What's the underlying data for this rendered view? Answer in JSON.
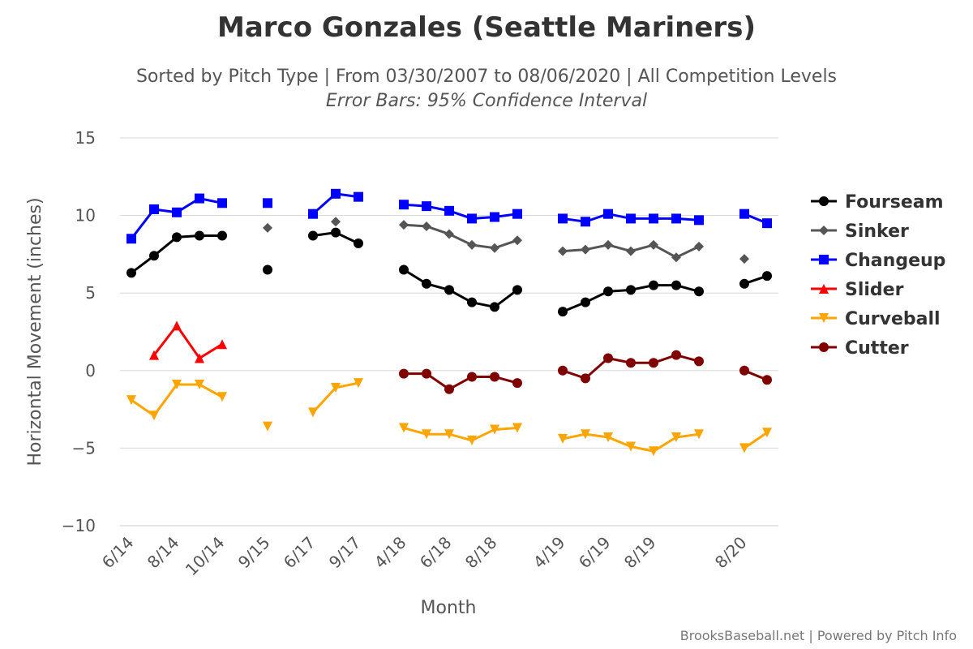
{
  "chart_data": {
    "type": "line",
    "title": "Marco Gonzales (Seattle Mariners)",
    "subtitle": "Sorted by Pitch Type | From 03/30/2007 to 08/06/2020 | All Competition Levels",
    "subtitle2": "Error Bars: 95% Confidence Interval",
    "xlabel": "Month",
    "ylabel": "Horizontal Movement (inches)",
    "credits": "BrooksBaseball.net | Powered by Pitch Info",
    "ylim": [
      -10,
      15
    ],
    "yticks": [
      15,
      10,
      5,
      0,
      -5,
      -10
    ],
    "xticks": [
      {
        "i": 0,
        "label": "6/14"
      },
      {
        "i": 2,
        "label": "8/14"
      },
      {
        "i": 4,
        "label": "10/14"
      },
      {
        "i": 6,
        "label": "9/15"
      },
      {
        "i": 8,
        "label": "6/17"
      },
      {
        "i": 10,
        "label": "9/17"
      },
      {
        "i": 12,
        "label": "4/18"
      },
      {
        "i": 14,
        "label": "6/18"
      },
      {
        "i": 16,
        "label": "8/18"
      },
      {
        "i": 19,
        "label": "4/19"
      },
      {
        "i": 21,
        "label": "6/19"
      },
      {
        "i": 23,
        "label": "8/19"
      },
      {
        "i": 27,
        "label": "8/20"
      }
    ],
    "x_count": 29,
    "grid": true,
    "legend_position": "right",
    "series": [
      {
        "name": "Fourseam",
        "color": "#000000",
        "marker": "circle",
        "points": [
          [
            0,
            6.3
          ],
          [
            1,
            7.4
          ],
          [
            2,
            8.6
          ],
          [
            3,
            8.7
          ],
          [
            4,
            8.7
          ],
          [
            6,
            6.5
          ],
          [
            8,
            8.7
          ],
          [
            9,
            8.9
          ],
          [
            10,
            8.2
          ],
          [
            12,
            6.5
          ],
          [
            13,
            5.6
          ],
          [
            14,
            5.2
          ],
          [
            15,
            4.4
          ],
          [
            16,
            4.1
          ],
          [
            17,
            5.2
          ],
          [
            19,
            3.8
          ],
          [
            20,
            4.4
          ],
          [
            21,
            5.1
          ],
          [
            22,
            5.2
          ],
          [
            23,
            5.5
          ],
          [
            24,
            5.5
          ],
          [
            25,
            5.1
          ],
          [
            27,
            5.6
          ],
          [
            28,
            6.1
          ]
        ]
      },
      {
        "name": "Sinker",
        "color": "#555555",
        "marker": "diamond",
        "points": [
          [
            6,
            9.2
          ],
          [
            9,
            9.6
          ],
          [
            12,
            9.4
          ],
          [
            13,
            9.3
          ],
          [
            14,
            8.8
          ],
          [
            15,
            8.1
          ],
          [
            16,
            7.9
          ],
          [
            17,
            8.4
          ],
          [
            19,
            7.7
          ],
          [
            20,
            7.8
          ],
          [
            21,
            8.1
          ],
          [
            22,
            7.7
          ],
          [
            23,
            8.1
          ],
          [
            24,
            7.3
          ],
          [
            25,
            8.0
          ],
          [
            27,
            7.2
          ]
        ]
      },
      {
        "name": "Changeup",
        "color": "#0000ff",
        "marker": "square",
        "points": [
          [
            0,
            8.5
          ],
          [
            1,
            10.4
          ],
          [
            2,
            10.2
          ],
          [
            3,
            11.1
          ],
          [
            4,
            10.8
          ],
          [
            6,
            10.8
          ],
          [
            8,
            10.1
          ],
          [
            9,
            11.4
          ],
          [
            10,
            11.2
          ],
          [
            12,
            10.7
          ],
          [
            13,
            10.6
          ],
          [
            14,
            10.3
          ],
          [
            15,
            9.8
          ],
          [
            16,
            9.9
          ],
          [
            17,
            10.1
          ],
          [
            19,
            9.8
          ],
          [
            20,
            9.6
          ],
          [
            21,
            10.1
          ],
          [
            22,
            9.8
          ],
          [
            23,
            9.8
          ],
          [
            24,
            9.8
          ],
          [
            25,
            9.7
          ],
          [
            27,
            10.1
          ],
          [
            28,
            9.5
          ]
        ]
      },
      {
        "name": "Slider",
        "color": "#ff0000",
        "marker": "triangle",
        "points": [
          [
            1,
            1.0
          ],
          [
            2,
            2.9
          ],
          [
            3,
            0.8
          ],
          [
            4,
            1.7
          ]
        ]
      },
      {
        "name": "Curveball",
        "color": "#ffa500",
        "marker": "triangle-down",
        "points": [
          [
            0,
            -1.9
          ],
          [
            1,
            -2.9
          ],
          [
            2,
            -0.9
          ],
          [
            3,
            -0.9
          ],
          [
            4,
            -1.7
          ],
          [
            6,
            -3.6
          ],
          [
            8,
            -2.7
          ],
          [
            9,
            -1.1
          ],
          [
            10,
            -0.8
          ],
          [
            12,
            -3.7
          ],
          [
            13,
            -4.1
          ],
          [
            14,
            -4.1
          ],
          [
            15,
            -4.5
          ],
          [
            16,
            -3.8
          ],
          [
            17,
            -3.7
          ],
          [
            19,
            -4.4
          ],
          [
            20,
            -4.1
          ],
          [
            21,
            -4.3
          ],
          [
            22,
            -4.9
          ],
          [
            23,
            -5.2
          ],
          [
            24,
            -4.3
          ],
          [
            25,
            -4.1
          ],
          [
            27,
            -5.0
          ],
          [
            28,
            -4.0
          ]
        ]
      },
      {
        "name": "Cutter",
        "color": "#800000",
        "marker": "circle",
        "points": [
          [
            12,
            -0.2
          ],
          [
            13,
            -0.2
          ],
          [
            14,
            -1.2
          ],
          [
            15,
            -0.4
          ],
          [
            16,
            -0.4
          ],
          [
            17,
            -0.8
          ],
          [
            19,
            0.0
          ],
          [
            20,
            -0.5
          ],
          [
            21,
            0.8
          ],
          [
            22,
            0.5
          ],
          [
            23,
            0.5
          ],
          [
            24,
            1.0
          ],
          [
            25,
            0.6
          ],
          [
            27,
            0.0
          ],
          [
            28,
            -0.6
          ]
        ]
      }
    ]
  }
}
